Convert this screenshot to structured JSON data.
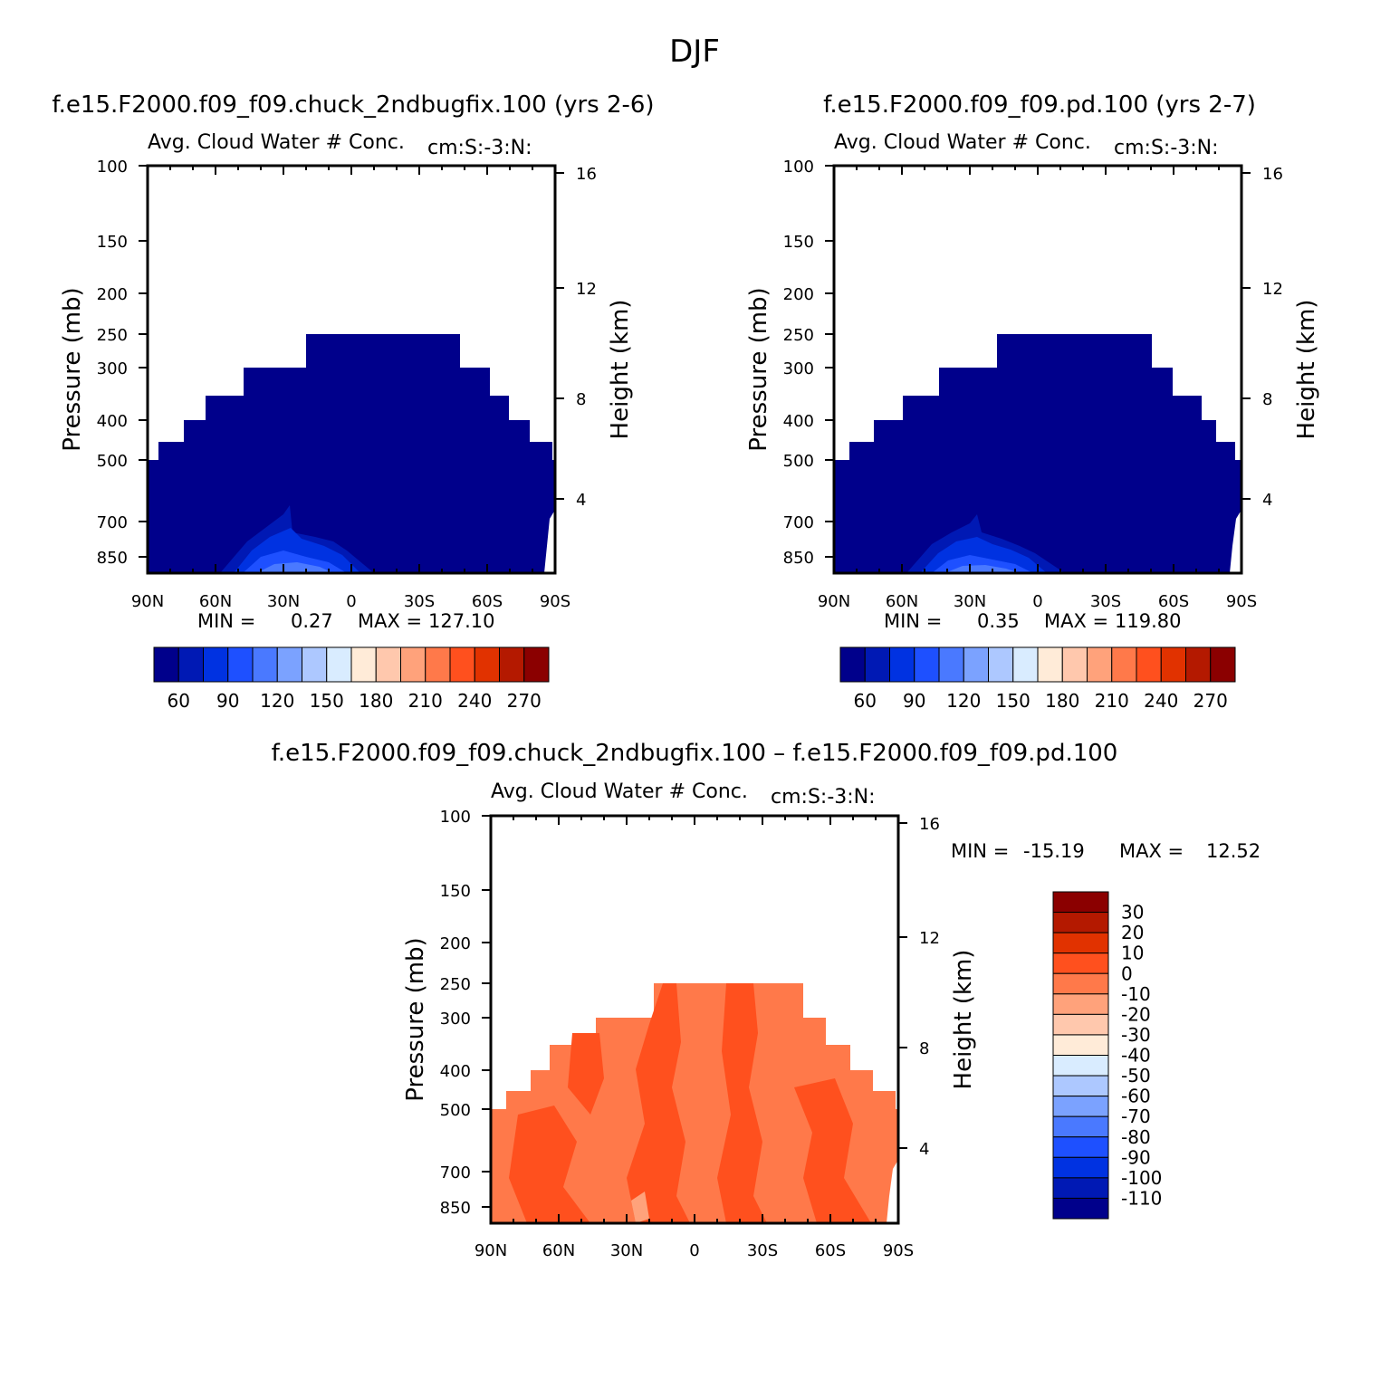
{
  "page_title": "DJF",
  "colors": {
    "model_scale": [
      "#00008b",
      "#0019b4",
      "#0032e1",
      "#1e50ff",
      "#4a79ff",
      "#7ba2ff",
      "#adc8ff",
      "#d9ecff",
      "#ffebd8",
      "#ffc8ad",
      "#ffa27b",
      "#ff794a",
      "#ff501e",
      "#e13200",
      "#b41900",
      "#8b0000"
    ],
    "diff_scale": [
      "#00008b",
      "#0019b4",
      "#0032e1",
      "#1e50ff",
      "#4a79ff",
      "#7ba2ff",
      "#adc8ff",
      "#d9ecff",
      "#ffebd8",
      "#ffc8ad",
      "#ffa27b",
      "#ff794a",
      "#ff501e",
      "#e13200",
      "#b41900",
      "#8b0000"
    ]
  },
  "chart_data": [
    {
      "type": "contour",
      "case_title": "f.e15.F2000.f09_f09.chuck_2ndbugfix.100 (yrs 2-6)",
      "variable_title": "Avg. Cloud Water # Conc.",
      "units": "cm:S:-3:N:",
      "ylabel": "Pressure (mb)",
      "ylabel_right": "Height (km)",
      "x_ticks": [
        "90N",
        "60N",
        "30N",
        "0",
        "30S",
        "60S",
        "90S"
      ],
      "y_ticks": [
        "100",
        "150",
        "200",
        "250",
        "300",
        "400",
        "500",
        "700",
        "850"
      ],
      "y_ticks_right": [
        "16",
        "12",
        "8",
        "4"
      ],
      "min_label": "MIN =",
      "min_value": "0.27",
      "max_label": "MAX =",
      "max_value": "127.10",
      "colorbar_labels": [
        "60",
        "90",
        "120",
        "150",
        "180",
        "210",
        "240",
        "270"
      ]
    },
    {
      "type": "contour",
      "case_title": "f.e15.F2000.f09_f09.pd.100 (yrs 2-7)",
      "variable_title": "Avg. Cloud Water # Conc.",
      "units": "cm:S:-3:N:",
      "ylabel": "Pressure (mb)",
      "ylabel_right": "Height (km)",
      "x_ticks": [
        "90N",
        "60N",
        "30N",
        "0",
        "30S",
        "60S",
        "90S"
      ],
      "y_ticks": [
        "100",
        "150",
        "200",
        "250",
        "300",
        "400",
        "500",
        "700",
        "850"
      ],
      "y_ticks_right": [
        "16",
        "12",
        "8",
        "4"
      ],
      "min_label": "MIN =",
      "min_value": "0.35",
      "max_label": "MAX =",
      "max_value": "119.80",
      "colorbar_labels": [
        "60",
        "90",
        "120",
        "150",
        "180",
        "210",
        "240",
        "270"
      ]
    },
    {
      "type": "contour",
      "case_title": "f.e15.F2000.f09_f09.chuck_2ndbugfix.100 – f.e15.F2000.f09_f09.pd.100",
      "variable_title": "Avg. Cloud Water # Conc.",
      "units": "cm:S:-3:N:",
      "ylabel": "Pressure (mb)",
      "ylabel_right": "Height (km)",
      "x_ticks": [
        "90N",
        "60N",
        "30N",
        "0",
        "30S",
        "60S",
        "90S"
      ],
      "y_ticks": [
        "100",
        "150",
        "200",
        "250",
        "300",
        "400",
        "500",
        "700",
        "850"
      ],
      "y_ticks_right": [
        "16",
        "12",
        "8",
        "4"
      ],
      "min_label": "MIN =",
      "min_value": "-15.19",
      "max_label": "MAX =",
      "max_value": "12.52",
      "colorbar_labels": [
        "30",
        "20",
        "10",
        "0",
        "-10",
        "-20",
        "-30",
        "-40",
        "-50",
        "-60",
        "-70",
        "-80",
        "-90",
        "-100",
        "-110"
      ]
    }
  ]
}
